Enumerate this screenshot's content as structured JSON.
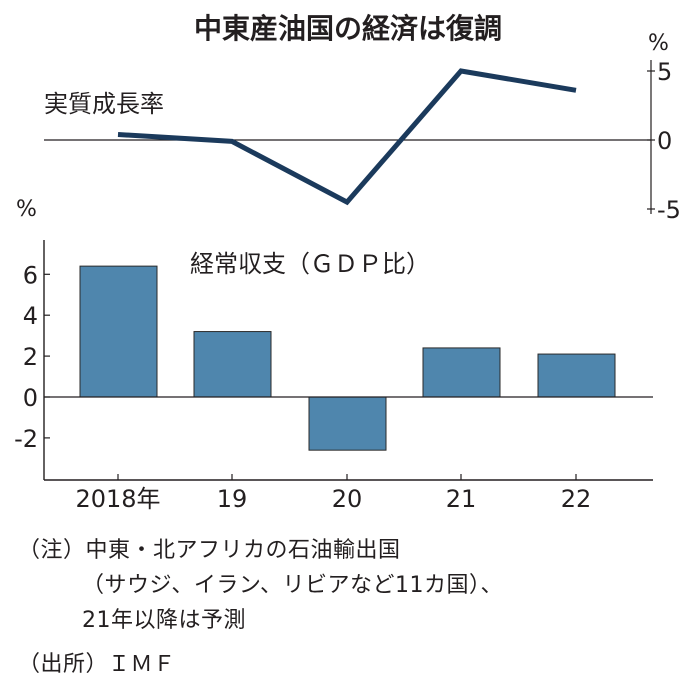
{
  "chart_data": [
    {
      "type": "line",
      "title": "中東産油国の経済は復調",
      "label": "実質成長率",
      "unit": "%",
      "categories": [
        "2018年",
        "19",
        "20",
        "21",
        "22"
      ],
      "values": [
        0.4,
        -0.1,
        -4.5,
        5.0,
        3.6
      ],
      "yticks": [
        "5",
        "0",
        "-5"
      ],
      "ytick_values": [
        5,
        0,
        -5
      ],
      "ylim": [
        -5.2,
        5.3
      ],
      "axis_side": "right",
      "color": "#1b3a5c"
    },
    {
      "type": "bar",
      "label": "経常収支（ＧＤＰ比）",
      "unit": "%",
      "categories": [
        "2018年",
        "19",
        "20",
        "21",
        "22"
      ],
      "values": [
        6.4,
        3.2,
        -2.6,
        2.4,
        2.1
      ],
      "yticks": [
        "6",
        "4",
        "2",
        "0",
        "-2"
      ],
      "ytick_values": [
        6,
        4,
        2,
        0,
        -2
      ],
      "ylim": [
        -4.1,
        7.5
      ],
      "axis_side": "left",
      "color": "#4f86ad"
    }
  ],
  "notes": {
    "line1": "（注）中東・北アフリカの石油輸出国",
    "line2": "（サウジ、イラン、リビアなど11カ国）、",
    "line3": "21年以降は予測",
    "source": "（出所）ＩＭＦ"
  }
}
